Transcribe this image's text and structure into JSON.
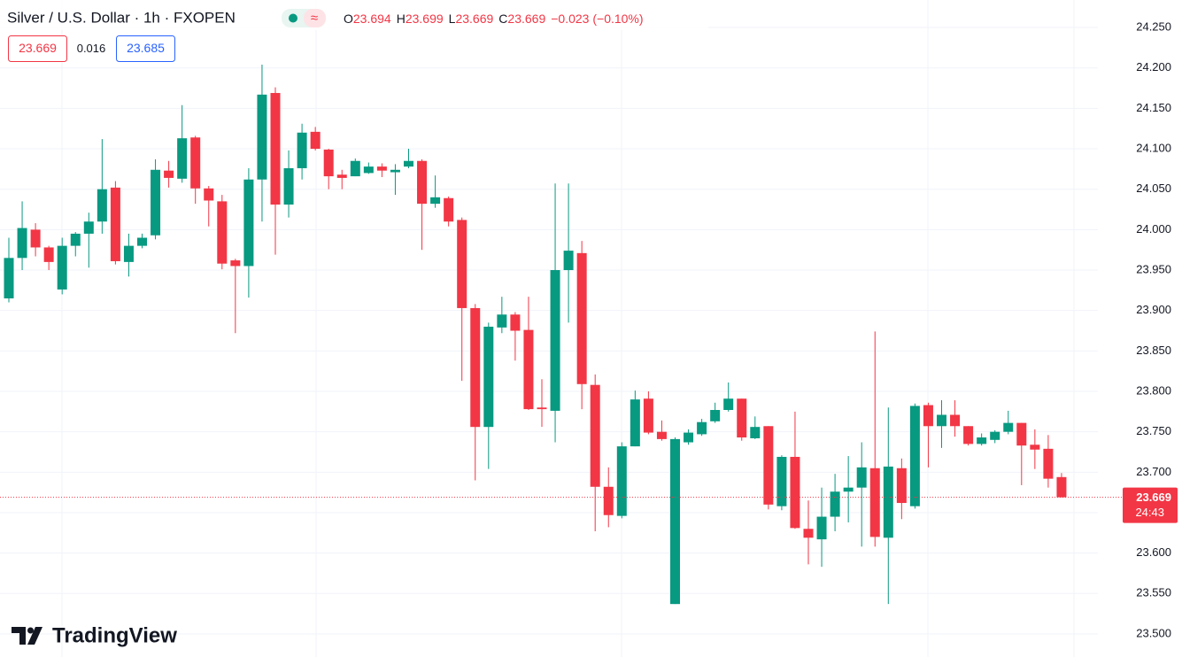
{
  "chart_data": {
    "type": "candlestick",
    "title": "Silver / U.S. Dollar · 1h · FXOPEN",
    "ohlc_legend": [
      {
        "key": "O",
        "value": 23.694
      },
      {
        "key": "H",
        "value": 23.699
      },
      {
        "key": "L",
        "value": 23.669
      },
      {
        "key": "C",
        "value": 23.669
      }
    ],
    "change": "−0.023 (−0.10%)",
    "bid": 23.669,
    "spread": 0.016,
    "ask": 23.685,
    "up_color": "#089981",
    "down_color": "#f23645",
    "open": [
      23.915,
      23.965,
      24.0,
      23.978,
      23.926,
      23.98,
      23.995,
      24.01,
      24.052,
      23.96,
      23.98,
      23.993,
      24.073,
      24.063,
      24.114,
      24.051,
      24.035,
      23.962,
      23.955,
      24.062,
      24.169,
      24.031,
      24.076,
      24.121,
      24.099,
      24.068,
      24.066,
      24.07,
      24.078,
      24.071,
      24.078,
      24.085,
      24.032,
      24.039,
      24.012,
      23.903,
      23.756,
      23.879,
      23.895,
      23.876,
      23.78,
      23.776,
      23.95,
      23.971,
      23.808,
      23.682,
      23.646,
      23.732,
      23.791,
      23.75,
      23.537,
      23.737,
      23.747,
      23.763,
      23.777,
      23.791,
      23.742,
      23.757,
      23.658,
      23.719,
      23.63,
      23.617,
      23.645,
      23.676,
      23.681,
      23.705,
      23.619,
      23.705,
      23.658,
      23.783,
      23.757,
      23.771,
      23.757,
      23.735,
      23.74,
      23.75,
      23.761,
      23.734,
      23.729,
      23.694
    ],
    "high": [
      23.99,
      24.035,
      24.008,
      23.98,
      23.99,
      23.997,
      24.021,
      24.112,
      24.06,
      23.995,
      23.995,
      24.087,
      24.085,
      24.154,
      24.116,
      24.054,
      24.043,
      23.964,
      24.076,
      24.204,
      24.176,
      24.098,
      24.131,
      24.127,
      24.1,
      24.074,
      24.088,
      24.083,
      24.082,
      24.081,
      24.1,
      24.087,
      24.067,
      24.041,
      24.015,
      23.908,
      23.885,
      23.917,
      23.898,
      23.917,
      23.815,
      24.057,
      24.057,
      23.986,
      23.821,
      23.706,
      23.737,
      23.801,
      23.8,
      23.764,
      23.743,
      23.753,
      23.766,
      23.786,
      23.811,
      23.791,
      23.769,
      23.757,
      23.721,
      23.775,
      23.665,
      23.681,
      23.698,
      23.72,
      23.737,
      23.874,
      23.78,
      23.717,
      23.785,
      23.786,
      23.789,
      23.789,
      23.757,
      23.748,
      23.752,
      23.776,
      23.761,
      23.753,
      23.746,
      23.699
    ],
    "low": [
      23.91,
      23.95,
      23.967,
      23.95,
      23.92,
      23.967,
      23.953,
      23.995,
      23.957,
      23.942,
      23.977,
      23.988,
      24.052,
      24.058,
      24.032,
      24.004,
      23.951,
      23.872,
      23.916,
      24.01,
      23.969,
      24.015,
      24.062,
      24.098,
      24.05,
      24.05,
      24.066,
      24.069,
      24.065,
      24.043,
      24.076,
      23.975,
      24.027,
      24.004,
      23.813,
      23.69,
      23.704,
      23.872,
      23.838,
      23.777,
      23.756,
      23.737,
      23.885,
      23.778,
      23.627,
      23.632,
      23.643,
      23.732,
      23.747,
      23.739,
      23.537,
      23.734,
      23.745,
      23.761,
      23.775,
      23.739,
      23.741,
      23.654,
      23.653,
      23.63,
      23.586,
      23.583,
      23.627,
      23.638,
      23.608,
      23.608,
      23.537,
      23.642,
      23.655,
      23.706,
      23.73,
      23.744,
      23.733,
      23.733,
      23.736,
      23.747,
      23.684,
      23.704,
      23.681,
      23.669
    ],
    "close": [
      23.965,
      24.002,
      23.978,
      23.96,
      23.98,
      23.995,
      24.01,
      24.05,
      23.961,
      23.98,
      23.99,
      24.074,
      24.064,
      24.113,
      24.051,
      24.036,
      23.958,
      23.955,
      24.062,
      24.167,
      24.031,
      24.076,
      24.12,
      24.1,
      24.066,
      24.064,
      24.085,
      24.078,
      24.073,
      24.074,
      24.085,
      24.032,
      24.04,
      24.01,
      23.903,
      23.756,
      23.88,
      23.895,
      23.875,
      23.778,
      23.778,
      23.95,
      23.974,
      23.809,
      23.682,
      23.647,
      23.732,
      23.79,
      23.749,
      23.741,
      23.741,
      23.749,
      23.762,
      23.777,
      23.791,
      23.743,
      23.756,
      23.66,
      23.719,
      23.631,
      23.619,
      23.645,
      23.676,
      23.681,
      23.706,
      23.62,
      23.707,
      23.662,
      23.782,
      23.757,
      23.771,
      23.757,
      23.735,
      23.743,
      23.75,
      23.761,
      23.733,
      23.728,
      23.692,
      23.669
    ],
    "ylim": [
      23.4715,
      24.284
    ],
    "yticks": [
      {
        "value": 23.5,
        "label": "23.500"
      },
      {
        "value": 23.55,
        "label": "23.550"
      },
      {
        "value": 23.6,
        "label": "23.600"
      },
      {
        "value": 23.65,
        "label": "23.650"
      },
      {
        "value": 23.7,
        "label": "23.700"
      },
      {
        "value": 23.75,
        "label": "23.750"
      },
      {
        "value": 23.8,
        "label": "23.800"
      },
      {
        "value": 23.85,
        "label": "23.850"
      },
      {
        "value": 23.9,
        "label": "23.900"
      },
      {
        "value": 23.95,
        "label": "23.950"
      },
      {
        "value": 24.0,
        "label": "24.000"
      },
      {
        "value": 24.05,
        "label": "24.050"
      },
      {
        "value": 24.1,
        "label": "24.100"
      },
      {
        "value": 24.15,
        "label": "24.150"
      },
      {
        "value": 24.2,
        "label": "24.200"
      },
      {
        "value": 24.25,
        "label": "24.250"
      }
    ],
    "grid": true,
    "last_price_label": "23.669",
    "countdown": "24:43",
    "logo": "TradingView"
  }
}
